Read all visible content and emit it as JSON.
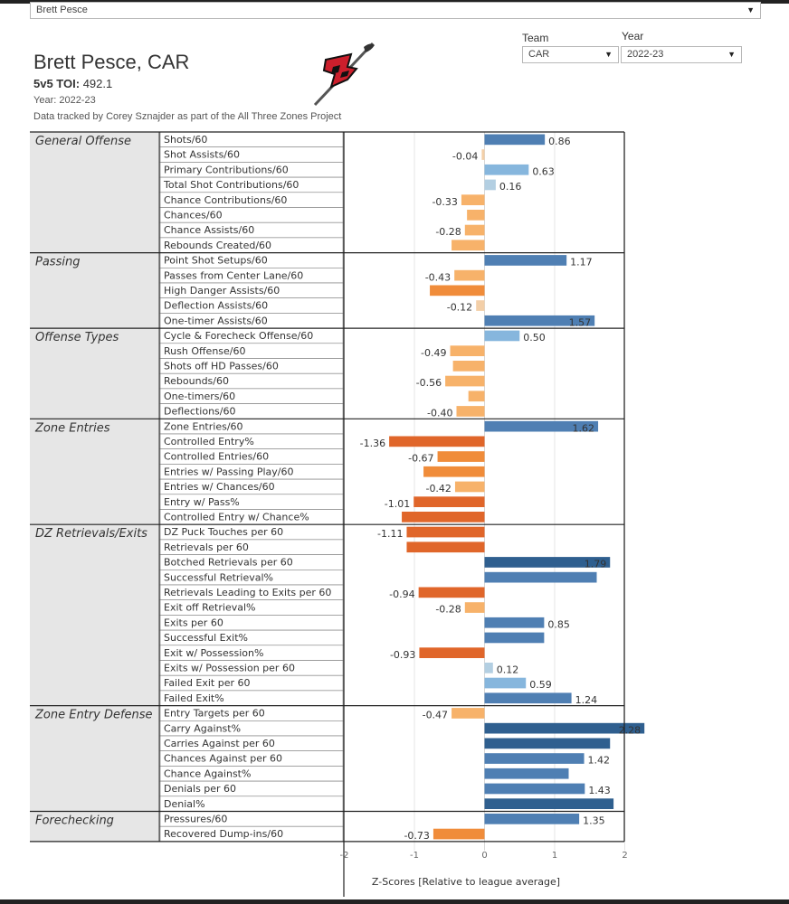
{
  "player_select": {
    "value": "Brett Pesce"
  },
  "filters": {
    "team_label": "Team",
    "team_value": "CAR",
    "year_label": "Year",
    "year_value": "2022-23"
  },
  "header": {
    "title": "Brett Pesce, CAR",
    "toi_label": "5v5 TOI:",
    "toi_value": "492.1",
    "year_text": "Year: 2022-23",
    "credit": "Data tracked by Corey Sznajder as part of the All Three Zones Project"
  },
  "colors": {
    "blue_dark": "#2f5f8f",
    "blue_mid": "#4f7fb3",
    "blue_light": "#86b6dd",
    "blue_pale": "#b3cfe2",
    "orange_dark": "#e0662a",
    "orange_mid": "#f08c3a",
    "orange_light": "#f7b26a",
    "orange_pale": "#f3cfa8",
    "category_bg": "#e6e6e6"
  },
  "chart_data": {
    "type": "bar",
    "orientation": "horizontal",
    "xlabel": "Z-Scores [Relative to league average]",
    "xlim": [
      -2,
      2
    ],
    "x_ticks": [
      "-2",
      "-1",
      "0",
      "1",
      "2"
    ],
    "grid": true,
    "categories": [
      {
        "name": "General Offense",
        "metrics": [
          {
            "label": "Shots/60",
            "value": 0.86,
            "label_text": "0.86"
          },
          {
            "label": "Shot Assists/60",
            "value": -0.04,
            "label_text": "-0.04"
          },
          {
            "label": "Primary Contributions/60",
            "value": 0.63,
            "label_text": "0.63"
          },
          {
            "label": "Total Shot Contributions/60",
            "value": 0.16,
            "label_text": "0.16"
          },
          {
            "label": "Chance Contributions/60",
            "value": -0.33,
            "label_text": "-0.33"
          },
          {
            "label": "Chances/60",
            "value": -0.25,
            "label_text": ""
          },
          {
            "label": "Chance Assists/60",
            "value": -0.28,
            "label_text": "-0.28"
          },
          {
            "label": "Rebounds Created/60",
            "value": -0.47,
            "label_text": ""
          }
        ]
      },
      {
        "name": "Passing",
        "metrics": [
          {
            "label": "Point Shot Setups/60",
            "value": 1.17,
            "label_text": "1.17"
          },
          {
            "label": "Passes from Center Lane/60",
            "value": -0.43,
            "label_text": "-0.43"
          },
          {
            "label": "High Danger Assists/60",
            "value": -0.78,
            "label_text": ""
          },
          {
            "label": "Deflection Assists/60",
            "value": -0.12,
            "label_text": "-0.12"
          },
          {
            "label": "One-timer Assists/60",
            "value": 1.57,
            "label_text": "1.57"
          }
        ]
      },
      {
        "name": "Offense Types",
        "metrics": [
          {
            "label": "Cycle & Forecheck Offense/60",
            "value": 0.5,
            "label_text": "0.50"
          },
          {
            "label": "Rush Offense/60",
            "value": -0.49,
            "label_text": "-0.49"
          },
          {
            "label": "Shots off HD Passes/60",
            "value": -0.45,
            "label_text": ""
          },
          {
            "label": "Rebounds/60",
            "value": -0.56,
            "label_text": "-0.56"
          },
          {
            "label": "One-timers/60",
            "value": -0.23,
            "label_text": ""
          },
          {
            "label": "Deflections/60",
            "value": -0.4,
            "label_text": "-0.40"
          }
        ]
      },
      {
        "name": "Zone Entries",
        "metrics": [
          {
            "label": "Zone Entries/60",
            "value": 1.62,
            "label_text": "1.62"
          },
          {
            "label": "Controlled Entry%",
            "value": -1.36,
            "label_text": "-1.36"
          },
          {
            "label": "Controlled Entries/60",
            "value": -0.67,
            "label_text": "-0.67"
          },
          {
            "label": "Entries w/ Passing Play/60",
            "value": -0.87,
            "label_text": ""
          },
          {
            "label": "Entries w/ Chances/60",
            "value": -0.42,
            "label_text": "-0.42"
          },
          {
            "label": "Entry w/ Pass%",
            "value": -1.01,
            "label_text": "-1.01"
          },
          {
            "label": "Controlled Entry w/ Chance%",
            "value": -1.18,
            "label_text": ""
          }
        ]
      },
      {
        "name": "DZ Retrievals/Exits",
        "metrics": [
          {
            "label": "DZ Puck Touches per 60",
            "value": -1.11,
            "label_text": "-1.11"
          },
          {
            "label": "Retrievals per 60",
            "value": -1.11,
            "label_text": ""
          },
          {
            "label": "Botched Retrievals per 60",
            "value": 1.79,
            "label_text": "1.79"
          },
          {
            "label": "Successful Retrieval%",
            "value": 1.6,
            "label_text": ""
          },
          {
            "label": "Retrievals Leading to Exits per 60",
            "value": -0.94,
            "label_text": "-0.94"
          },
          {
            "label": "Exit off Retrieval%",
            "value": -0.28,
            "label_text": "-0.28"
          },
          {
            "label": "Exits per 60",
            "value": 0.85,
            "label_text": "0.85"
          },
          {
            "label": "Successful Exit%",
            "value": 0.85,
            "label_text": ""
          },
          {
            "label": "Exit w/ Possession%",
            "value": -0.93,
            "label_text": "-0.93"
          },
          {
            "label": "Exits w/ Possession per 60",
            "value": 0.12,
            "label_text": "0.12"
          },
          {
            "label": "Failed Exit per 60",
            "value": 0.59,
            "label_text": "0.59"
          },
          {
            "label": "Failed Exit%",
            "value": 1.24,
            "label_text": "1.24"
          }
        ]
      },
      {
        "name": "Zone Entry Defense",
        "metrics": [
          {
            "label": "Entry Targets per 60",
            "value": -0.47,
            "label_text": "-0.47"
          },
          {
            "label": "Carry Against%",
            "value": 2.28,
            "label_text": "2.28"
          },
          {
            "label": "Carries Against per 60",
            "value": 1.79,
            "label_text": ""
          },
          {
            "label": "Chances Against per 60",
            "value": 1.42,
            "label_text": "1.42"
          },
          {
            "label": "Chance Against%",
            "value": 1.2,
            "label_text": ""
          },
          {
            "label": "Denials per 60",
            "value": 1.43,
            "label_text": "1.43"
          },
          {
            "label": "Denial%",
            "value": 1.84,
            "label_text": ""
          }
        ]
      },
      {
        "name": "Forechecking",
        "metrics": [
          {
            "label": "Pressures/60",
            "value": 1.35,
            "label_text": "1.35"
          },
          {
            "label": "Recovered Dump-ins/60",
            "value": -0.73,
            "label_text": "-0.73"
          }
        ]
      }
    ]
  }
}
